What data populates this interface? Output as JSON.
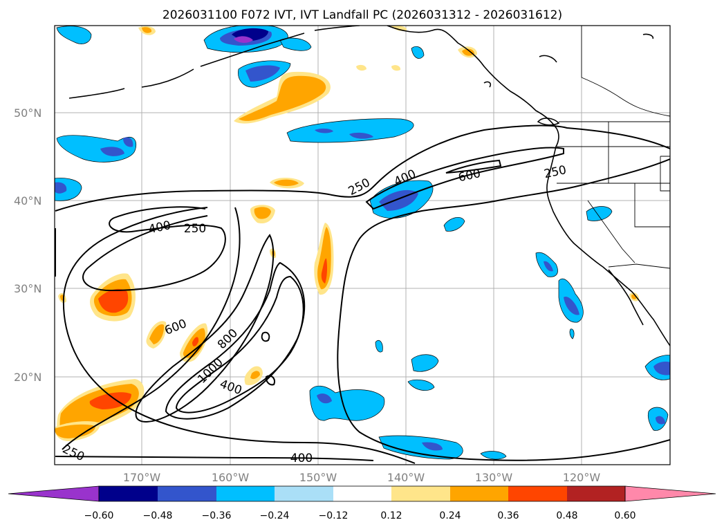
{
  "title": "2026031100 F072 IVT, IVT Landfall PC (2026031312 - 2026031612)",
  "lat_labels": [
    "50°N",
    "40°N",
    "30°N",
    "20°N"
  ],
  "lon_labels": [
    "170°W",
    "160°W",
    "150°W",
    "140°W",
    "130°W",
    "120°W"
  ],
  "colorbar": {
    "levels": [
      "−0.60",
      "−0.48",
      "−0.36",
      "−0.24",
      "−0.12",
      "0.12",
      "0.24",
      "0.36",
      "0.48",
      "0.60"
    ],
    "colors": [
      "#9933cc",
      "#00008b",
      "#3355cc",
      "#00bfff",
      "#aadff7",
      "#ffffff",
      "#ffe58a",
      "#ffa500",
      "#ff4500",
      "#b22222",
      "#ff88aa"
    ]
  },
  "ivt_contour_labels": [
    "250",
    "400",
    "600",
    "250",
    "400",
    "250",
    "600",
    "800",
    "1000",
    "400",
    "250",
    "400"
  ]
}
